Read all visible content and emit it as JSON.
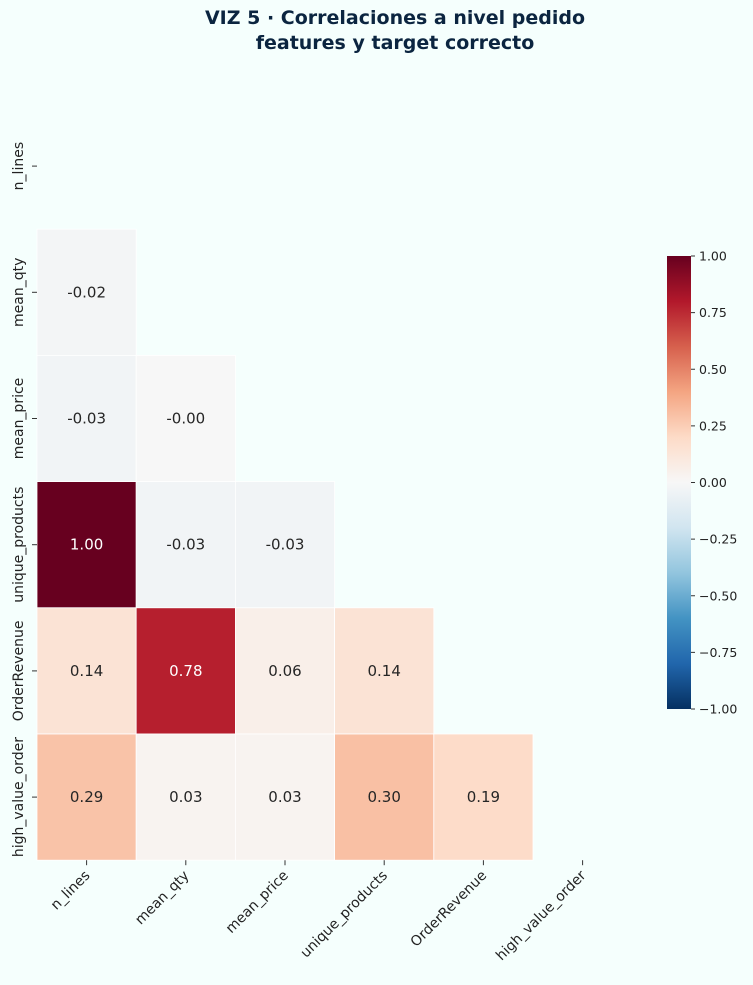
{
  "chart_data": {
    "type": "heatmap",
    "title_lines": [
      "VIZ 5 · Correlaciones a nivel pedido",
      "features y target correcto"
    ],
    "variables": [
      "n_lines",
      "mean_qty",
      "mean_price",
      "unique_products",
      "OrderRevenue",
      "high_value_order"
    ],
    "mask": "upper-triangle-including-diagonal",
    "matrix": [
      [
        null,
        null,
        null,
        null,
        null,
        null
      ],
      [
        -0.02,
        null,
        null,
        null,
        null,
        null
      ],
      [
        -0.03,
        -0.0,
        null,
        null,
        null,
        null
      ],
      [
        1.0,
        -0.03,
        -0.03,
        null,
        null,
        null
      ],
      [
        0.14,
        0.78,
        0.06,
        0.14,
        null,
        null
      ],
      [
        0.29,
        0.03,
        0.03,
        0.3,
        0.19,
        null
      ]
    ],
    "labels": [
      [
        null,
        null,
        null,
        null,
        null,
        null
      ],
      [
        "-0.02",
        null,
        null,
        null,
        null,
        null
      ],
      [
        "-0.03",
        "-0.00",
        null,
        null,
        null,
        null
      ],
      [
        "1.00",
        "-0.03",
        "-0.03",
        null,
        null,
        null
      ],
      [
        "0.14",
        "0.78",
        "0.06",
        "0.14",
        null,
        null
      ],
      [
        "0.29",
        "0.03",
        "0.03",
        "0.30",
        "0.19",
        null
      ]
    ],
    "colormap": "RdBu_r",
    "vmin": -1,
    "vmax": 1,
    "colorbar_ticks": [
      1.0,
      0.75,
      0.5,
      0.25,
      0.0,
      -0.25,
      -0.5,
      -0.75,
      -1.0
    ],
    "colorbar_tick_labels": [
      "1.00",
      "0.75",
      "0.50",
      "0.25",
      "0.00",
      "−0.25",
      "−0.50",
      "−0.75",
      "−1.00"
    ]
  }
}
